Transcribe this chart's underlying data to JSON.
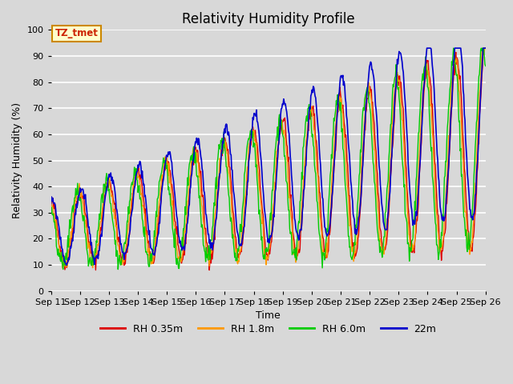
{
  "title": "Relativity Humidity Profile",
  "xlabel": "Time",
  "ylabel": "Relativity Humidity (%)",
  "ylim": [
    0,
    100
  ],
  "annotation_text": "TZ_tmet",
  "annotation_color": "#cc2200",
  "annotation_bg": "#ffffcc",
  "annotation_border": "#cc8800",
  "colors": {
    "RH 0.35m": "#dd0000",
    "RH 1.8m": "#ff9900",
    "RH 6.0m": "#00cc00",
    "22m": "#0000cc"
  },
  "background_color": "#d8d8d8",
  "plot_bg_color": "#d8d8d8",
  "grid_color": "#ffffff",
  "x_tick_labels": [
    "Sep 11",
    "Sep 12",
    "Sep 13",
    "Sep 14",
    "Sep 15",
    "Sep 16",
    "Sep 17",
    "Sep 18",
    "Sep 19",
    "Sep 20",
    "Sep 21",
    "Sep 22",
    "Sep 23",
    "Sep 24",
    "Sep 25",
    "Sep 26"
  ],
  "title_fontsize": 12,
  "axis_label_fontsize": 9,
  "tick_fontsize": 8,
  "legend_fontsize": 9
}
